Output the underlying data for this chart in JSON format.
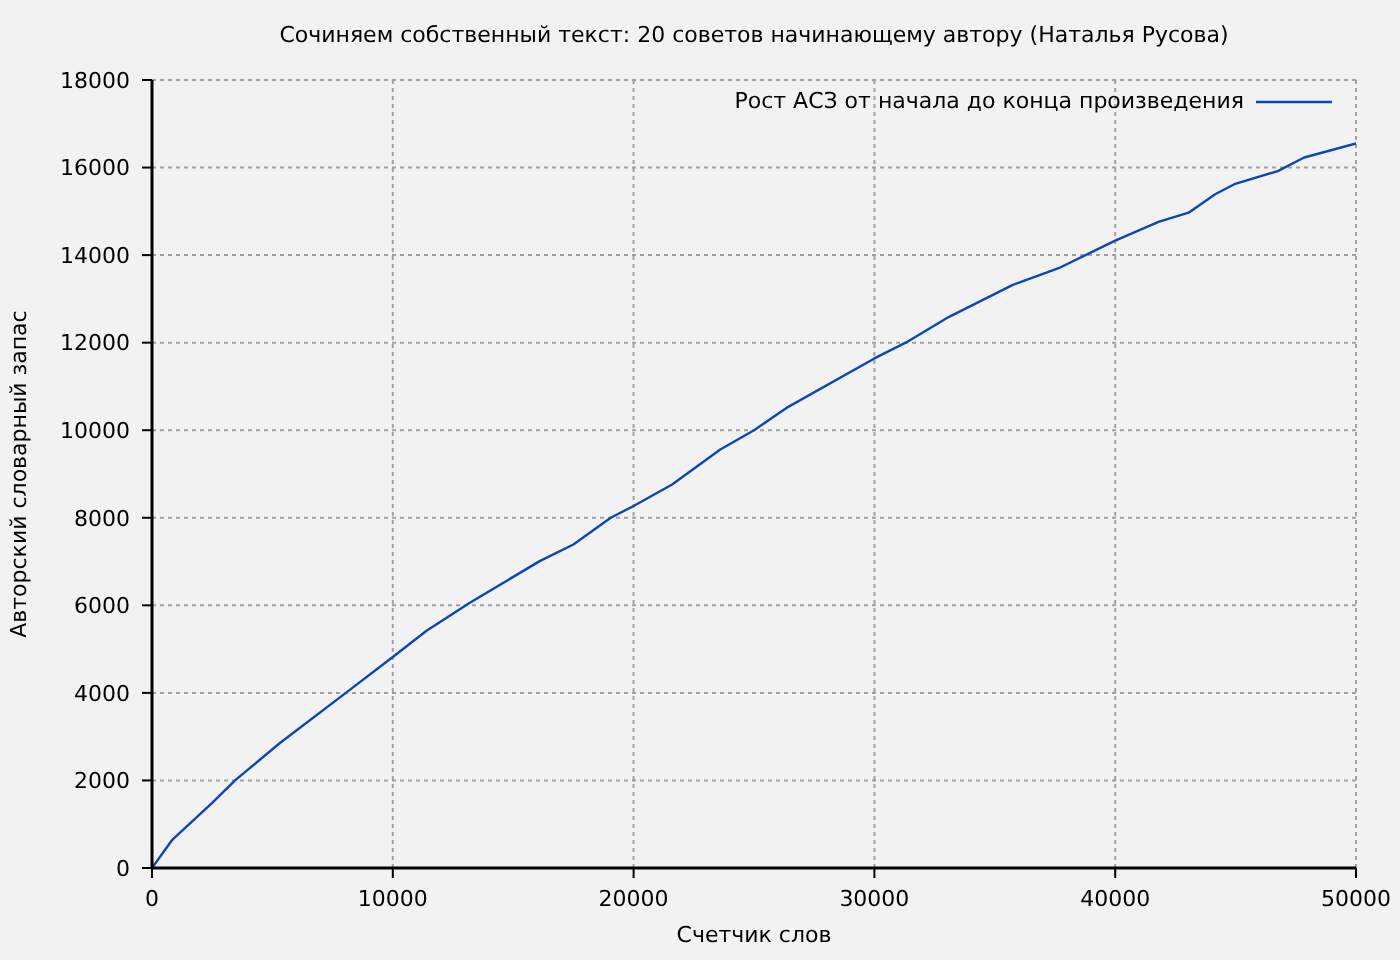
{
  "chart_data": {
    "type": "line",
    "title": "Сочиняем собственный текст: 20 советов начинающему автору (Наталья Русова)",
    "xlabel": "Счетчик слов",
    "ylabel": "Авторский словарный запас",
    "x": [
      0,
      850,
      2500,
      3450,
      5300,
      8050,
      10000,
      11400,
      13200,
      16100,
      17500,
      19050,
      20000,
      21600,
      23600,
      25000,
      26350,
      30000,
      31300,
      33100,
      35750,
      37650,
      40000,
      41800,
      43050,
      44150,
      44950,
      46750,
      47850,
      50000
    ],
    "series": [
      {
        "name": "Рост АСЗ от начала до конца произведения",
        "color": "#0b47b3",
        "values": [
          0,
          650,
          1490,
          2000,
          2850,
          4000,
          4820,
          5420,
          6060,
          7010,
          7390,
          8000,
          8270,
          8760,
          9560,
          10000,
          10510,
          11640,
          12000,
          12590,
          13320,
          13700,
          14330,
          14760,
          14970,
          15390,
          15620,
          15920,
          16230,
          16550
        ]
      }
    ],
    "xlim": [
      0,
      50000
    ],
    "xticks": [
      0,
      10000,
      20000,
      30000,
      40000,
      50000
    ],
    "ylim": [
      0,
      18000
    ],
    "yticks": [
      0,
      2000,
      4000,
      6000,
      8000,
      10000,
      12000,
      14000,
      16000,
      18000
    ],
    "grid": true,
    "legend": "top right"
  }
}
